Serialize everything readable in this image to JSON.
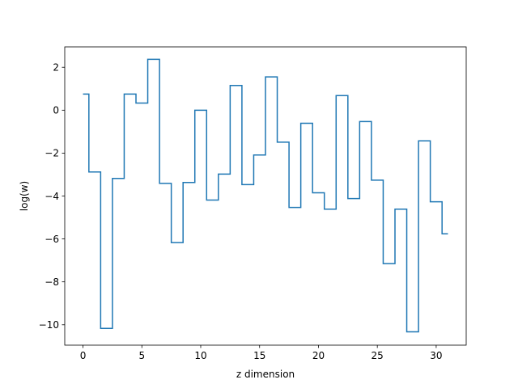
{
  "chart_data": {
    "type": "line",
    "drawstyle": "steps-mid",
    "title": "",
    "xlabel": "z dimension",
    "ylabel": "log(w)",
    "xlim": [
      -1.55,
      32.55
    ],
    "ylim": [
      -10.95,
      2.95
    ],
    "xticks": [
      0,
      5,
      10,
      15,
      20,
      25,
      30
    ],
    "yticks": [
      2,
      0,
      -2,
      -4,
      -6,
      -8,
      -10
    ],
    "grid": false,
    "legend": "none",
    "series": [
      {
        "color": "#1f77b4",
        "x": [
          0,
          1,
          2,
          3,
          4,
          5,
          6,
          7,
          8,
          9,
          10,
          11,
          12,
          13,
          14,
          15,
          16,
          17,
          18,
          19,
          20,
          21,
          22,
          23,
          24,
          25,
          26,
          27,
          28,
          29,
          30,
          31
        ],
        "y": [
          0.75,
          -2.88,
          -10.17,
          -3.18,
          0.75,
          0.33,
          2.37,
          -3.41,
          -6.17,
          -3.37,
          0.0,
          -4.19,
          -2.98,
          1.15,
          -3.47,
          -2.09,
          1.55,
          -1.49,
          -4.53,
          -0.61,
          -3.85,
          -4.61,
          0.68,
          -4.12,
          -0.53,
          -3.26,
          -7.15,
          -4.61,
          -10.33,
          -1.43,
          -4.27,
          -5.76
        ]
      }
    ]
  }
}
